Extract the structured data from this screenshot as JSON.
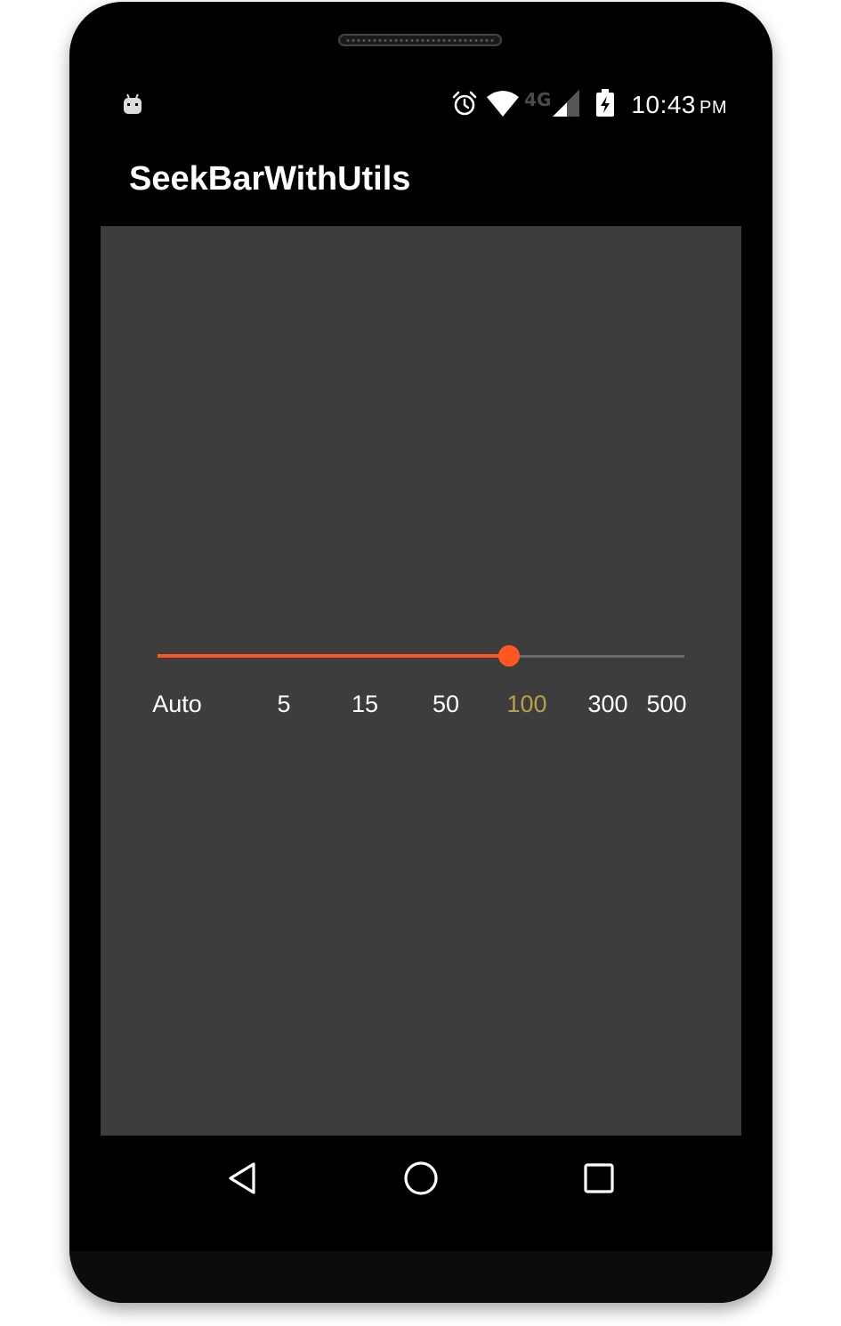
{
  "status_bar": {
    "left_icon": "android-notification-icon",
    "icons": [
      "alarm-icon",
      "wifi-icon",
      "signal-icon",
      "battery-charging-icon"
    ],
    "network": "4G",
    "time": "10:43",
    "ampm": "PM"
  },
  "app": {
    "title": "SeekBarWithUtils"
  },
  "seekbar": {
    "labels": [
      "Auto",
      "5",
      "15",
      "50",
      "100",
      "300",
      "500"
    ],
    "selected_index": 4,
    "selected_label": "100",
    "progress_fraction": 0.667,
    "colors": {
      "progress": "#ff5722",
      "track": "#6a6a6a",
      "label": "#ffffff",
      "selected_label": "#b5a346"
    }
  },
  "nav_bar": {
    "buttons": [
      "back-icon",
      "home-icon",
      "recents-icon"
    ]
  },
  "colors": {
    "content_background": "#3d3d3d",
    "bars_background": "#000000"
  }
}
